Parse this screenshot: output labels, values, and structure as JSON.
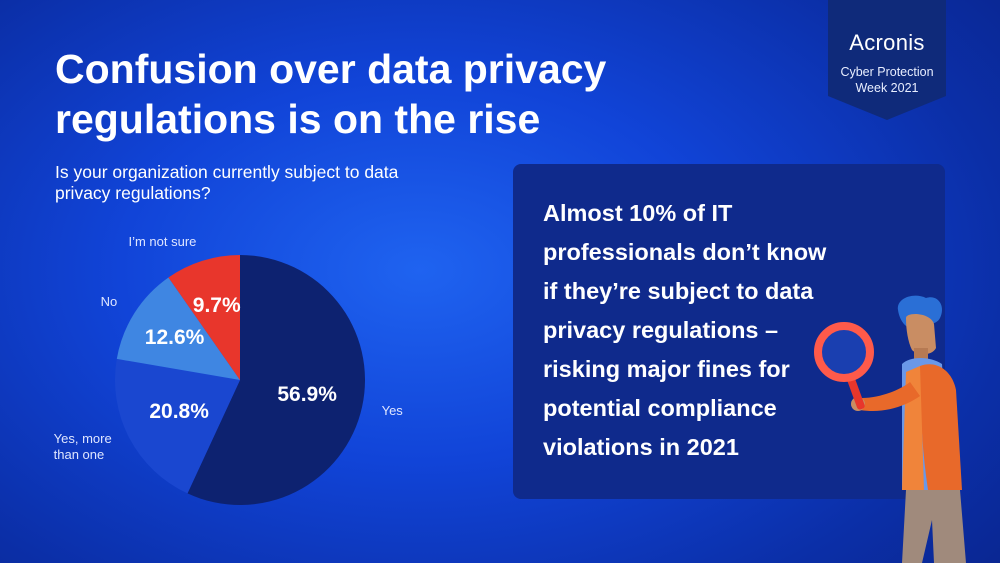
{
  "title": {
    "line1": "Confusion over data privacy",
    "line2": "regulations is on the rise"
  },
  "question": {
    "line1": "Is your organization currently subject to data",
    "line2": "privacy regulations?"
  },
  "badge": {
    "logo": "Acronis",
    "line1": "Cyber Protection",
    "line2": "Week 2021"
  },
  "callout": {
    "lines": [
      "Almost 10% of IT",
      "professionals don’t know",
      "if they’re subject to data",
      "privacy regulations –",
      "risking major fines for",
      "potential compliance",
      "violations in 2021"
    ]
  },
  "chart_data": {
    "type": "pie",
    "title": "Is your organization currently subject to data privacy regulations?",
    "slices": [
      {
        "category": "Yes",
        "label_lines": [
          "Yes"
        ],
        "value": 56.9,
        "value_label": "56.9%",
        "color": "#0d2270"
      },
      {
        "category": "Yes, more than one",
        "label_lines": [
          "Yes, more",
          "than one"
        ],
        "value": 20.8,
        "value_label": "20.8%",
        "color": "#1a47d0"
      },
      {
        "category": "No",
        "label_lines": [
          "No"
        ],
        "value": 12.6,
        "value_label": "12.6%",
        "color": "#3f86e2"
      },
      {
        "category": "I’m not sure",
        "label_lines": [
          "I’m not sure"
        ],
        "value": 9.7,
        "value_label": "9.7%",
        "color": "#e8362c"
      }
    ]
  },
  "colors": {
    "background": "#1144d8",
    "callout_bg": "#0f2a8c",
    "badge_bg": "#0f2a7a",
    "accent_red": "#e8362c"
  },
  "illustration": {
    "icon": "person-with-magnifying-glass"
  }
}
